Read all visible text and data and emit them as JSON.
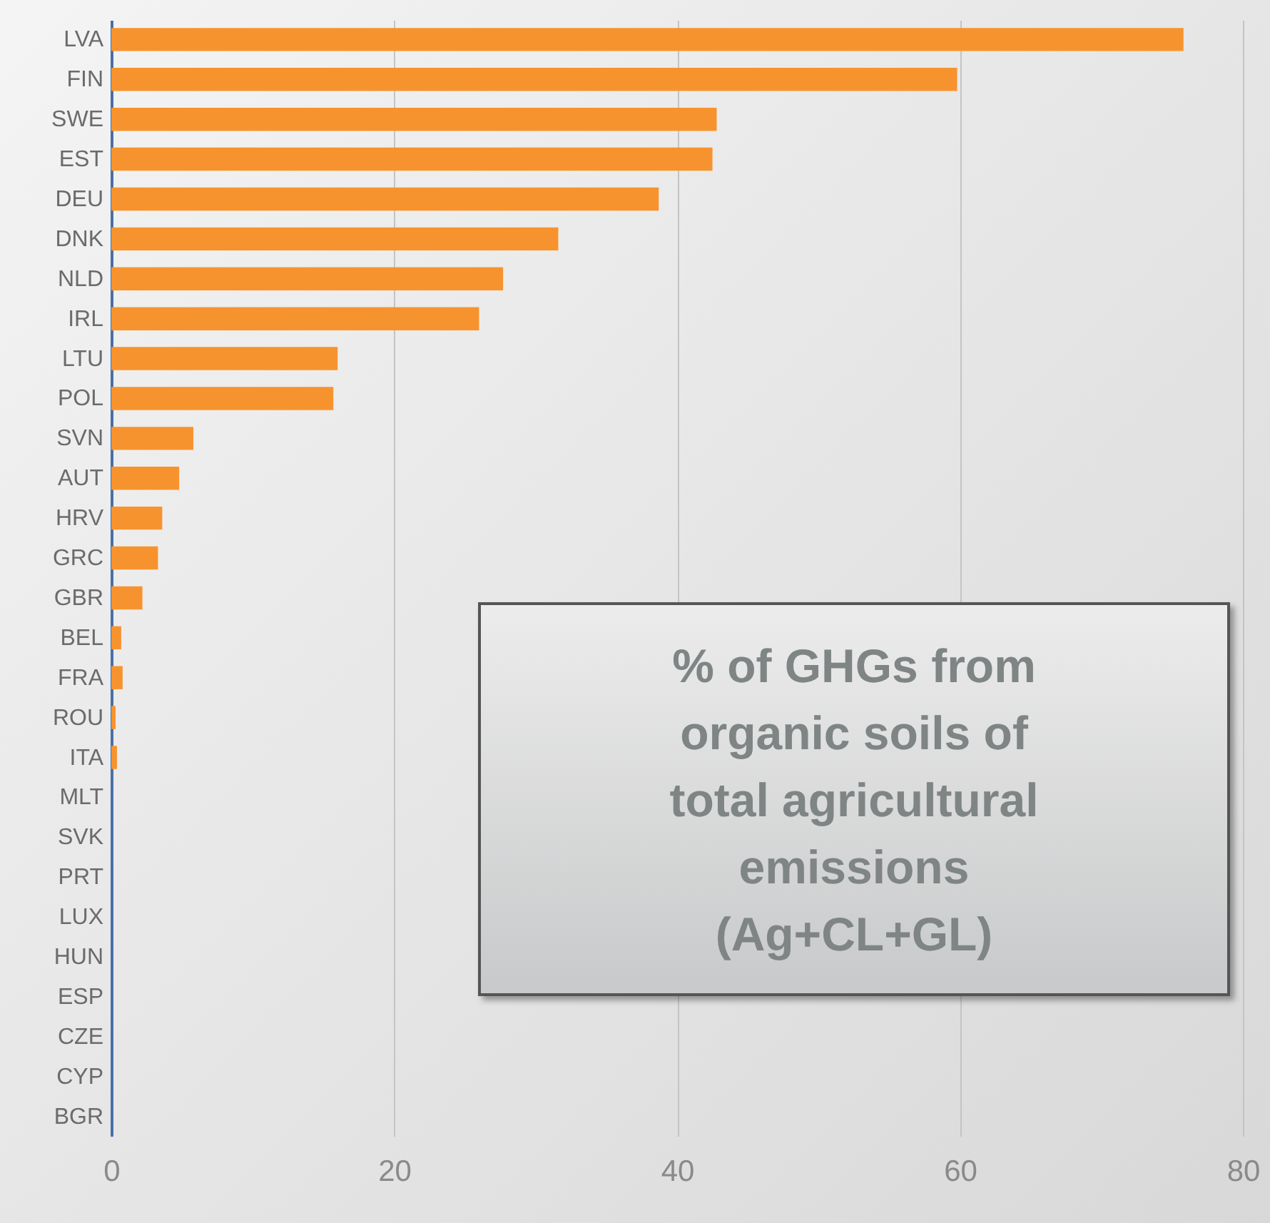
{
  "chart_data": {
    "type": "bar",
    "orientation": "horizontal",
    "title": "% of GHGs from organic soils of total agricultural emissions (Ag+CL+GL)",
    "categories": [
      "LVA",
      "FIN",
      "SWE",
      "EST",
      "DEU",
      "DNK",
      "NLD",
      "IRL",
      "LTU",
      "POL",
      "SVN",
      "AUT",
      "HRV",
      "GRC",
      "GBR",
      "BEL",
      "FRA",
      "ROU",
      "ITA",
      "MLT",
      "SVK",
      "PRT",
      "LUX",
      "HUN",
      "ESP",
      "CZE",
      "CYP",
      "BGR"
    ],
    "values": [
      75.8,
      59.8,
      42.8,
      42.5,
      38.7,
      31.6,
      27.7,
      26.0,
      16.0,
      15.7,
      5.8,
      4.8,
      3.6,
      3.3,
      2.2,
      0.7,
      0.8,
      0.3,
      0.4,
      0,
      0,
      0,
      0,
      0,
      0,
      0,
      0,
      0
    ],
    "color": "#f7932e",
    "xlim": [
      0,
      80
    ],
    "xticks": [
      0,
      20,
      40,
      60,
      80
    ],
    "grid": "x"
  }
}
